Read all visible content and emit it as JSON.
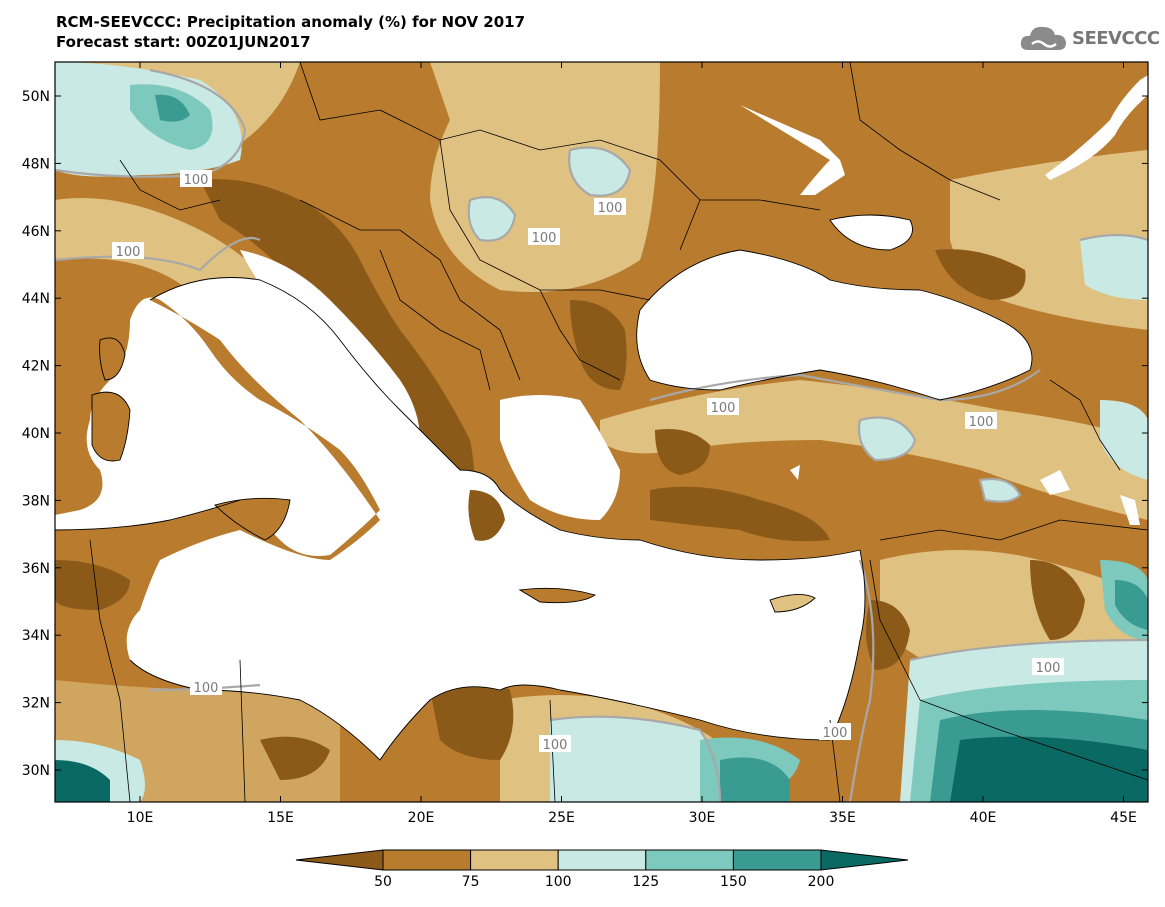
{
  "title_line1": "RCM-SEEVCCC: Precipitation anomaly (%) for NOV 2017",
  "title_line2": "Forecast start: 00Z01JUN2017",
  "logo_text": "SEEVCCC",
  "lat_labels": [
    "50N",
    "48N",
    "46N",
    "44N",
    "42N",
    "40N",
    "38N",
    "36N",
    "34N",
    "32N",
    "30N"
  ],
  "lon_labels": [
    "10E",
    "15E",
    "20E",
    "25E",
    "30E",
    "35E",
    "40E",
    "45E"
  ],
  "contour_label": "100",
  "colorbar": {
    "labels": [
      "50",
      "75",
      "100",
      "125",
      "150",
      "200"
    ],
    "colors": [
      "#8c5a18",
      "#b97c2e",
      "#dfc182",
      "#c9eae4",
      "#7ec9bd",
      "#3a9b92",
      "#0a6a63"
    ]
  }
}
